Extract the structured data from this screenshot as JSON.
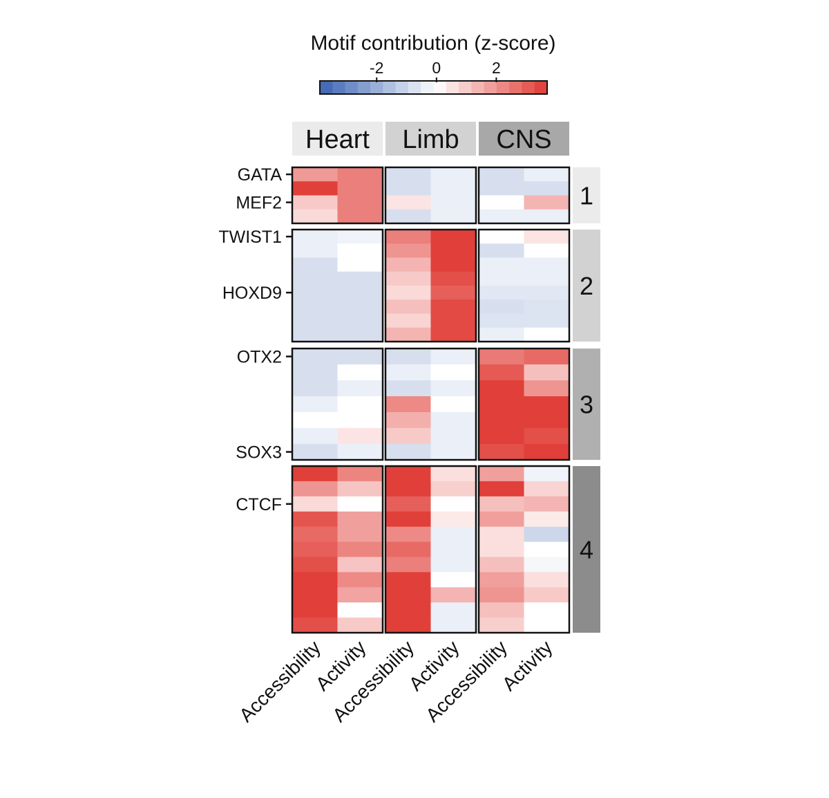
{
  "chart_data": {
    "type": "heatmap",
    "title": "Motif contribution (z-score)",
    "colorbar": {
      "ticks": [
        {
          "value": -2,
          "label": "-2"
        },
        {
          "value": 0,
          "label": "0"
        },
        {
          "value": 2,
          "label": "2"
        }
      ],
      "range": [
        -3.9,
        3.7
      ],
      "n_steps": 18,
      "low_color": "#3b63b3",
      "mid_color": "#ffffff",
      "high_color": "#e03a33"
    },
    "tissues": [
      {
        "name": "Heart",
        "header_color": "#ebebeb"
      },
      {
        "name": "Limb",
        "header_color": "#d2d2d2"
      },
      {
        "name": "CNS",
        "header_color": "#a8a8a8"
      }
    ],
    "measures": [
      "Accessibility",
      "Activity"
    ],
    "column_labels": [
      "Accessibility",
      "Activity",
      "Accessibility",
      "Activity",
      "Accessibility",
      "Activity"
    ],
    "clusters": [
      {
        "id": "1",
        "color": "#ebebeb",
        "row_labels": [
          {
            "row": 1,
            "label": "GATA"
          },
          {
            "row": 3,
            "label": "MEF2"
          }
        ],
        "rows": [
          [
            1.9,
            2.4,
            -0.8,
            -0.4,
            -0.8,
            -0.4
          ],
          [
            3.6,
            2.4,
            -0.8,
            -0.4,
            -0.8,
            -0.8
          ],
          [
            1.0,
            2.4,
            0.5,
            -0.4,
            0.0,
            1.4
          ],
          [
            0.7,
            2.4,
            -0.8,
            -0.4,
            -0.4,
            -0.4
          ]
        ]
      },
      {
        "id": "2",
        "color": "#d2d2d2",
        "row_labels": [
          {
            "row": 1,
            "label": "TWIST1"
          },
          {
            "row": 5,
            "label": "HOXD9"
          }
        ],
        "rows": [
          [
            -0.4,
            -0.3,
            2.4,
            3.6,
            0.0,
            0.5
          ],
          [
            -0.4,
            0.0,
            2.0,
            3.6,
            -0.8,
            0.0
          ],
          [
            -0.8,
            0.0,
            1.4,
            3.6,
            -0.4,
            -0.4
          ],
          [
            -0.8,
            -0.8,
            1.0,
            3.3,
            -0.4,
            -0.4
          ],
          [
            -0.8,
            -0.8,
            0.7,
            3.0,
            -0.6,
            -0.6
          ],
          [
            -0.8,
            -0.8,
            1.2,
            3.4,
            -0.8,
            -0.7
          ],
          [
            -0.8,
            -0.8,
            0.8,
            3.4,
            -0.7,
            -0.7
          ],
          [
            -0.8,
            -0.8,
            1.4,
            3.4,
            -0.4,
            0.0
          ]
        ]
      },
      {
        "id": "3",
        "color": "#b0b0b0",
        "row_labels": [
          {
            "row": 1,
            "label": "OTX2"
          },
          {
            "row": 7,
            "label": "SOX3"
          }
        ],
        "rows": [
          [
            -0.8,
            -0.8,
            -0.8,
            -0.4,
            2.5,
            2.8
          ],
          [
            -0.8,
            0.0,
            -0.4,
            0.0,
            3.1,
            1.2
          ],
          [
            -0.8,
            -0.4,
            -0.8,
            -0.4,
            3.6,
            2.0
          ],
          [
            -0.4,
            0.0,
            2.2,
            0.0,
            3.6,
            3.6
          ],
          [
            0.0,
            0.0,
            1.5,
            -0.4,
            3.6,
            3.6
          ],
          [
            -0.4,
            0.5,
            1.0,
            -0.4,
            3.6,
            3.3
          ],
          [
            -0.8,
            -0.4,
            -0.8,
            -0.4,
            3.3,
            3.6
          ]
        ]
      },
      {
        "id": "4",
        "color": "#8c8c8c",
        "row_labels": [
          {
            "row": 3,
            "label": "CTCF"
          }
        ],
        "rows": [
          [
            3.6,
            2.3,
            3.6,
            0.6,
            1.8,
            -0.3
          ],
          [
            2.0,
            1.1,
            3.6,
            0.9,
            3.6,
            0.8
          ],
          [
            0.7,
            0.0,
            3.0,
            0.0,
            1.2,
            1.4
          ],
          [
            3.2,
            1.8,
            3.6,
            0.4,
            1.8,
            0.4
          ],
          [
            2.8,
            1.8,
            2.2,
            -0.4,
            0.6,
            -1.0
          ],
          [
            3.0,
            2.3,
            2.8,
            -0.4,
            0.6,
            0.0
          ],
          [
            3.3,
            1.1,
            2.4,
            -0.4,
            1.2,
            -0.2
          ],
          [
            3.6,
            2.2,
            3.6,
            0.0,
            1.8,
            0.6
          ],
          [
            3.6,
            1.7,
            3.6,
            1.4,
            2.0,
            1.0
          ],
          [
            3.6,
            0.0,
            3.6,
            -0.4,
            1.2,
            0.0
          ],
          [
            3.3,
            1.0,
            3.6,
            -0.4,
            0.9,
            0.0
          ]
        ]
      }
    ]
  }
}
